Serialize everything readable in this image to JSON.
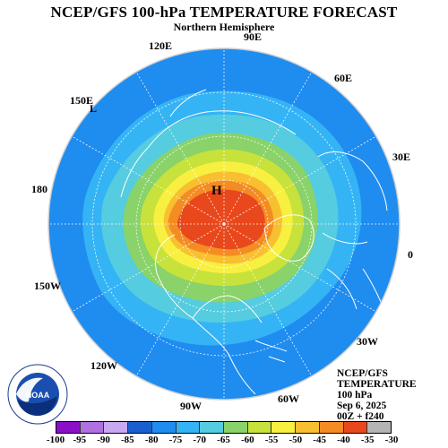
{
  "title": "NCEP/GFS 100-hPa TEMPERATURE FORECAST",
  "subtitle": "Northern Hemisphere",
  "longitude_labels": [
    "90E",
    "120E",
    "60E",
    "150E",
    "30E",
    "180",
    "0",
    "150W",
    "30W",
    "120W",
    "60W",
    "90W"
  ],
  "high_marker": "H",
  "low_marker": "L",
  "info": {
    "line1": "NCEP/GFS",
    "line2": "TEMPERATURE",
    "line3": "100 hPa",
    "line4": "Sep 6, 2025",
    "line5": "00Z + f240"
  },
  "logo": {
    "text": "NOAA",
    "ring_text_top": "NATIONAL OCEANIC AND ATMOSPHERIC ADMINISTRATION",
    "ring_text_bottom": "U.S. DEPARTMENT OF COMMERCE"
  },
  "colorbar": {
    "ticks": [
      "-100",
      "-95",
      "-90",
      "-85",
      "-80",
      "-75",
      "-70",
      "-65",
      "-60",
      "-55",
      "-50",
      "-45",
      "-40",
      "-35",
      "-30"
    ],
    "colors": [
      "#8a10c8",
      "#b070e0",
      "#c8a8f0",
      "#1a5fd0",
      "#1f8cf0",
      "#35b4f5",
      "#55cce0",
      "#8ad26a",
      "#c8e23c",
      "#f8f040",
      "#f8c030",
      "#f48c24",
      "#e8481c",
      "#b4b4b4"
    ]
  }
}
